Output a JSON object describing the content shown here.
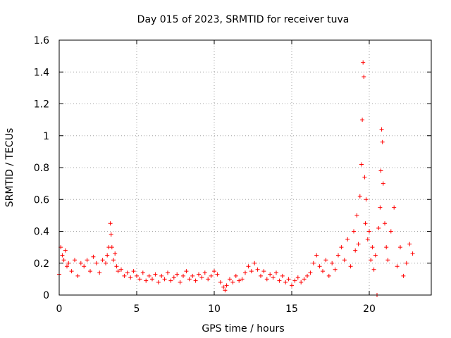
{
  "chart_data": {
    "type": "scatter",
    "title": "Day 015 of 2023, SRMTID for receiver tuva",
    "xlabel": "GPS time / hours",
    "ylabel": "SRMTID / TECUs",
    "xlim": [
      0,
      24
    ],
    "ylim": [
      0,
      1.6
    ],
    "xticks": [
      0,
      5,
      10,
      15,
      20
    ],
    "xtick_labels": [
      "0",
      "5",
      "10",
      "15",
      "20"
    ],
    "yticks": [
      0,
      0.2,
      0.4,
      0.6,
      0.8,
      1,
      1.2,
      1.4,
      1.6
    ],
    "ytick_labels": [
      "0",
      "0.2",
      "0.4",
      "0.6",
      "0.8",
      "1",
      "1.2",
      "1.4",
      "1.6"
    ],
    "grid": true,
    "marker": "+",
    "series": [
      {
        "name": "SRMTID",
        "color": "#ff0000",
        "x": [
          0.0,
          0.1,
          0.2,
          0.3,
          0.4,
          0.5,
          0.6,
          0.8,
          1.0,
          1.2,
          1.4,
          1.6,
          1.8,
          2.0,
          2.2,
          2.4,
          2.6,
          2.8,
          3.0,
          3.1,
          3.2,
          3.3,
          3.35,
          3.4,
          3.5,
          3.6,
          3.7,
          3.8,
          4.0,
          4.2,
          4.4,
          4.6,
          4.8,
          5.0,
          5.2,
          5.4,
          5.6,
          5.8,
          6.0,
          6.2,
          6.4,
          6.6,
          6.8,
          7.0,
          7.2,
          7.4,
          7.6,
          7.8,
          8.0,
          8.2,
          8.4,
          8.6,
          8.8,
          9.0,
          9.2,
          9.4,
          9.6,
          9.8,
          10.0,
          10.2,
          10.4,
          10.6,
          10.7,
          10.8,
          11.0,
          11.2,
          11.4,
          11.6,
          11.8,
          12.0,
          12.2,
          12.4,
          12.6,
          12.8,
          13.0,
          13.2,
          13.4,
          13.6,
          13.8,
          14.0,
          14.2,
          14.4,
          14.6,
          14.8,
          15.0,
          15.2,
          15.4,
          15.6,
          15.8,
          16.0,
          16.2,
          16.4,
          16.6,
          16.8,
          17.0,
          17.2,
          17.4,
          17.6,
          17.8,
          18.0,
          18.2,
          18.4,
          18.6,
          18.8,
          19.0,
          19.1,
          19.2,
          19.3,
          19.4,
          19.5,
          19.55,
          19.6,
          19.65,
          19.7,
          19.75,
          19.8,
          19.9,
          20.0,
          20.1,
          20.2,
          20.3,
          20.4,
          20.5,
          20.6,
          20.7,
          20.75,
          20.8,
          20.85,
          20.9,
          21.0,
          21.1,
          21.2,
          21.4,
          21.6,
          21.8,
          22.0,
          22.2,
          22.4,
          22.6,
          22.8
        ],
        "y": [
          0.13,
          0.3,
          0.25,
          0.22,
          0.28,
          0.18,
          0.2,
          0.15,
          0.22,
          0.12,
          0.2,
          0.18,
          0.22,
          0.15,
          0.24,
          0.2,
          0.14,
          0.22,
          0.2,
          0.25,
          0.3,
          0.45,
          0.38,
          0.3,
          0.22,
          0.26,
          0.18,
          0.15,
          0.16,
          0.12,
          0.14,
          0.11,
          0.15,
          0.12,
          0.1,
          0.14,
          0.09,
          0.12,
          0.1,
          0.13,
          0.08,
          0.12,
          0.1,
          0.14,
          0.09,
          0.11,
          0.13,
          0.08,
          0.12,
          0.15,
          0.1,
          0.12,
          0.09,
          0.13,
          0.11,
          0.14,
          0.1,
          0.12,
          0.15,
          0.13,
          0.08,
          0.05,
          0.03,
          0.06,
          0.1,
          0.08,
          0.12,
          0.09,
          0.1,
          0.14,
          0.18,
          0.15,
          0.2,
          0.16,
          0.12,
          0.15,
          0.1,
          0.13,
          0.11,
          0.14,
          0.09,
          0.12,
          0.08,
          0.1,
          0.06,
          0.09,
          0.11,
          0.08,
          0.1,
          0.12,
          0.14,
          0.2,
          0.25,
          0.18,
          0.15,
          0.22,
          0.12,
          0.2,
          0.16,
          0.25,
          0.3,
          0.22,
          0.35,
          0.18,
          0.4,
          0.28,
          0.5,
          0.32,
          0.62,
          0.82,
          1.1,
          1.46,
          1.37,
          0.74,
          0.45,
          0.6,
          0.35,
          0.4,
          0.22,
          0.3,
          0.16,
          0.25,
          0.0,
          0.42,
          0.55,
          0.78,
          1.04,
          0.96,
          0.7,
          0.45,
          0.3,
          0.22,
          0.4,
          0.55,
          0.18,
          0.3,
          0.12,
          0.2,
          0.32,
          0.26
        ]
      }
    ]
  }
}
